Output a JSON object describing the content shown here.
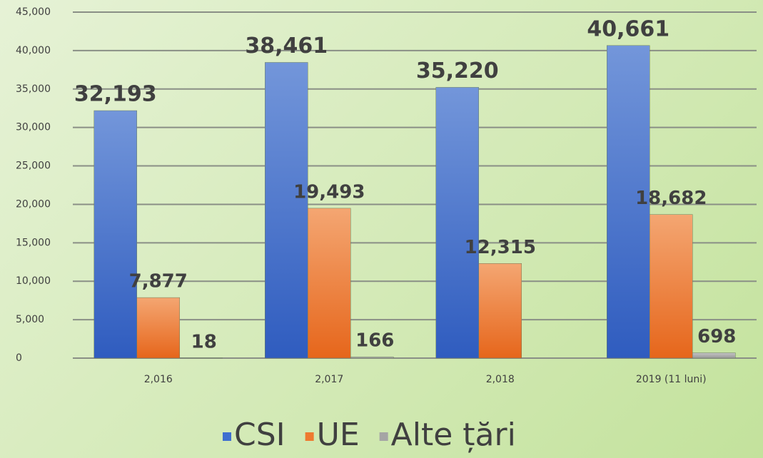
{
  "chart_data": {
    "type": "bar",
    "categories": [
      "2,016",
      "2,017",
      "2,018",
      "2019 (11 luni)"
    ],
    "series": [
      {
        "name": "CSI",
        "color": "#3f6fd0",
        "values": [
          32193,
          38461,
          35220,
          40661
        ],
        "value_labels": [
          "32,193",
          "38,461",
          "35,220",
          "40,661"
        ]
      },
      {
        "name": "UE",
        "color": "#ee7a30",
        "values": [
          7877,
          19493,
          12315,
          18682
        ],
        "value_labels": [
          "7,877",
          "19,493",
          "12,315",
          "18,682"
        ]
      },
      {
        "name": "Alte țări",
        "color": "#a5a5a5",
        "values": [
          18,
          166,
          null,
          698
        ],
        "value_labels": [
          "18",
          "166",
          null,
          "698"
        ]
      }
    ],
    "ylim": [
      0,
      45000
    ],
    "yticks": [
      0,
      {
        "value": 5000,
        "label": "5,000"
      },
      {
        "value": 10000,
        "label": "10,000"
      },
      {
        "value": 15000,
        "label": "15,000"
      },
      {
        "value": 20000,
        "label": "20,000"
      },
      {
        "value": 25000,
        "label": "25,000"
      },
      {
        "value": 30000,
        "label": "30,000"
      },
      {
        "value": 35000,
        "label": "35,000"
      },
      {
        "value": 40000,
        "label": "40,000"
      },
      {
        "value": 45000,
        "label": "45,000"
      }
    ],
    "grid": true,
    "legend": "bottom"
  }
}
